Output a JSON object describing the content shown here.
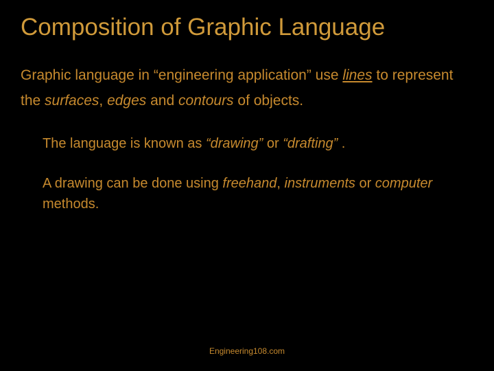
{
  "colors": {
    "background": "#000000",
    "title": "#d09a3a",
    "body": "#c78a2e",
    "footer": "#c78a2e"
  },
  "title": "Composition of Graphic Language",
  "para1": {
    "t1": "Graphic language in ",
    "q1": "“engineering application”",
    "t2": "  use ",
    "lines": "lines",
    "t3": "  to represent the ",
    "surfaces": "surfaces",
    "t4": ", ",
    "edges": "edges",
    "t5": "  and ",
    "contours": "contours",
    "t6": " of objects."
  },
  "para2": {
    "t1": "The language is known as ",
    "q1": "“drawing”",
    "t2": "  or ",
    "q2": "“drafting”",
    "t3": " ."
  },
  "para3": {
    "t1": "A drawing can be done using ",
    "freehand": "freehand",
    "t2": ", ",
    "instruments": "instruments",
    "t3": " or ",
    "computer": "computer",
    "t4": "  methods."
  },
  "footer": "Engineering108.com"
}
